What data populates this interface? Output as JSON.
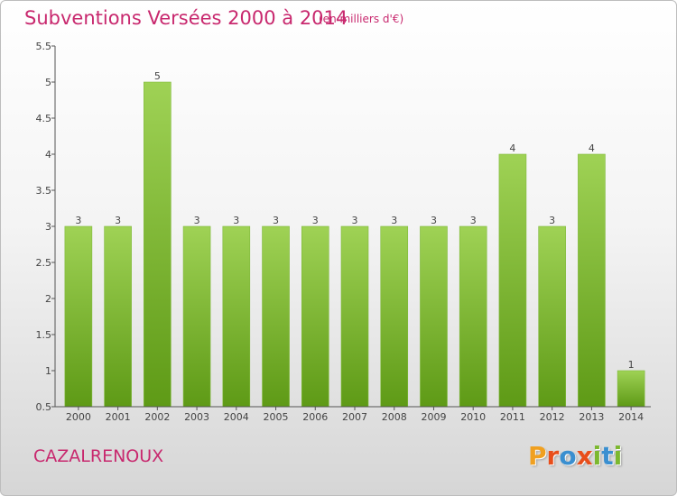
{
  "header": {
    "title": "Subventions Versées 2000 à 2014",
    "subtitle": "(en milliers d'€)"
  },
  "footer": {
    "commune": "CAZALRENOUX",
    "logo": [
      "P",
      "r",
      "o",
      "x",
      "i",
      "t",
      "i"
    ]
  },
  "colors": {
    "accent": "#c8286e",
    "bar_top": "#9fd255",
    "bar_bottom": "#5e9a16",
    "logo": [
      "#f0a020",
      "#e84e1b",
      "#3a8fd0",
      "#e84e1b",
      "#7cb82f",
      "#3a8fd0",
      "#7cb82f"
    ]
  },
  "chart_data": {
    "type": "bar",
    "categories": [
      "2000",
      "2001",
      "2002",
      "2003",
      "2004",
      "2005",
      "2006",
      "2007",
      "2008",
      "2009",
      "2010",
      "2011",
      "2012",
      "2013",
      "2014"
    ],
    "values": [
      3,
      3,
      5,
      3,
      3,
      3,
      3,
      3,
      3,
      3,
      3,
      4,
      3,
      4,
      1
    ],
    "data_labels": [
      "3",
      "3",
      "5",
      "3",
      "3",
      "3",
      "3",
      "3",
      "3",
      "3",
      "3",
      "4",
      "3",
      "4",
      "1"
    ],
    "yticks": [
      "0.5",
      "1",
      "1.5",
      "2",
      "2.5",
      "3",
      "3.5",
      "4",
      "4.5",
      "5",
      "5.5"
    ],
    "ylim": [
      0.5,
      5.5
    ],
    "grid": false,
    "legend": "none"
  }
}
